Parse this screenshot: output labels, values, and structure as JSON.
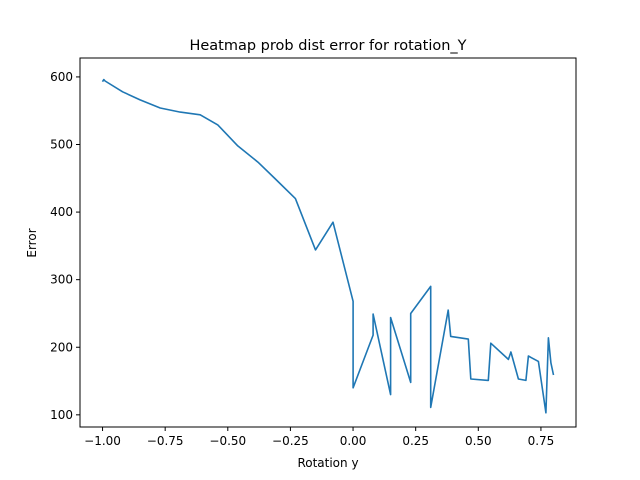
{
  "chart_data": {
    "type": "line",
    "title": "Heatmap prob dist error for rotation_Y",
    "xlabel": "Rotation y",
    "ylabel": "Error",
    "xlim": [
      -1.09,
      0.89
    ],
    "ylim": [
      82,
      628
    ],
    "grid": false,
    "x_ticks": [
      -1.0,
      -0.75,
      -0.5,
      -0.25,
      0.0,
      0.25,
      0.5,
      0.75
    ],
    "x_tick_labels": [
      "−1.00",
      "−0.75",
      "−0.50",
      "−0.25",
      "0.00",
      "0.25",
      "0.50",
      "0.75"
    ],
    "y_ticks": [
      100,
      200,
      300,
      400,
      500,
      600
    ],
    "y_tick_labels": [
      "100",
      "200",
      "300",
      "400",
      "500",
      "600"
    ],
    "series": [
      {
        "color": "#1f77b4",
        "x": [
          -1.0,
          -0.995,
          -0.99,
          -0.92,
          -0.85,
          -0.77,
          -0.69,
          -0.61,
          -0.54,
          -0.46,
          -0.38,
          -0.31,
          -0.23,
          -0.15,
          -0.08,
          0.0,
          0.0,
          0.08,
          0.08,
          0.15,
          0.15,
          0.23,
          0.23,
          0.31,
          0.31,
          0.38,
          0.39,
          0.46,
          0.47,
          0.54,
          0.55,
          0.62,
          0.63,
          0.66,
          0.69,
          0.7,
          0.71,
          0.74,
          0.77,
          0.78,
          0.79,
          0.8
        ],
        "y": [
          593,
          596,
          594,
          578,
          566,
          554,
          548,
          544,
          529,
          498,
          474,
          449,
          420,
          344,
          385,
          268,
          140,
          218,
          249,
          130,
          244,
          148,
          250,
          290,
          111,
          255,
          216,
          212,
          153,
          151,
          206,
          182,
          193,
          153,
          151,
          187,
          185,
          179,
          103,
          214,
          177,
          159
        ]
      }
    ]
  }
}
